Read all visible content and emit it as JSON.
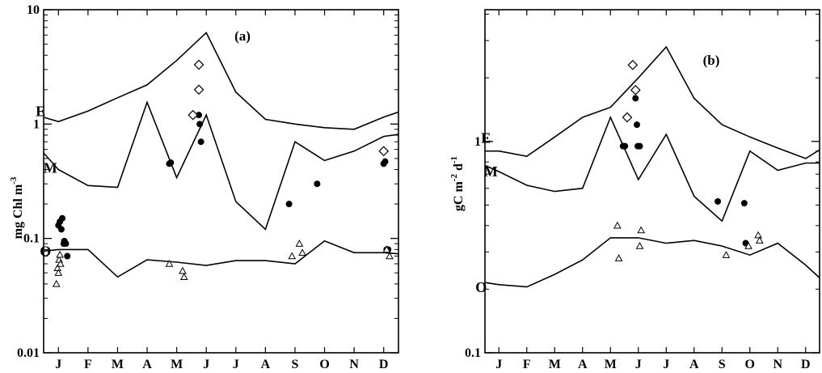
{
  "chart_data": [
    {
      "type": "line",
      "panel_label": "(a)",
      "ylabel_main": "mg Chl m",
      "ylabel_sup": "-3",
      "yscale": "log",
      "ylim": [
        0.01,
        10
      ],
      "yticks": [
        0.01,
        0.1,
        1,
        10
      ],
      "ytick_labels": [
        "0.01",
        "0.1",
        "1",
        "10"
      ],
      "months": [
        "J",
        "F",
        "M",
        "A",
        "M",
        "J",
        "J",
        "A",
        "S",
        "O",
        "N",
        "D"
      ],
      "xlim": [
        0.5,
        12.5
      ],
      "series": [
        {
          "name": "E",
          "x": [
            0,
            1,
            2,
            3,
            4,
            5,
            6,
            7,
            8,
            9,
            10,
            11,
            12,
            12.6
          ],
          "values": [
            1.25,
            1.05,
            1.3,
            1.7,
            2.2,
            3.6,
            6.3,
            1.9,
            1.1,
            1.0,
            0.93,
            0.9,
            1.15,
            1.3
          ]
        },
        {
          "name": "M",
          "x": [
            0,
            1,
            2,
            3,
            4,
            5,
            6,
            7,
            8,
            9,
            10,
            11,
            12,
            12.6
          ],
          "values": [
            0.78,
            0.4,
            0.29,
            0.28,
            1.55,
            0.34,
            1.2,
            0.21,
            0.12,
            0.7,
            0.48,
            0.58,
            0.78,
            0.82
          ]
        },
        {
          "name": "O",
          "x": [
            0,
            1,
            2,
            3,
            4,
            5,
            6,
            7,
            8,
            9,
            10,
            11,
            12,
            12.6
          ],
          "values": [
            0.075,
            0.08,
            0.08,
            0.046,
            0.065,
            0.062,
            0.058,
            0.064,
            0.064,
            0.06,
            0.095,
            0.075,
            0.075,
            0.073
          ]
        }
      ],
      "scatter": {
        "filled_circles": {
          "x": [
            1.0,
            1.05,
            1.1,
            1.13,
            1.18,
            1.2,
            1.25,
            1.3,
            4.75,
            4.8,
            5.75,
            5.78,
            5.82,
            8.8,
            9.75,
            12.0,
            12.05,
            12.1,
            12.15
          ],
          "values": [
            0.13,
            0.14,
            0.12,
            0.15,
            0.09,
            0.095,
            0.09,
            0.07,
            0.45,
            0.46,
            1.2,
            1.0,
            0.7,
            0.2,
            0.3,
            0.45,
            0.47,
            0.08,
            0.08
          ]
        },
        "open_diamonds": {
          "x": [
            5.55,
            5.75,
            5.75,
            12.0
          ],
          "values": [
            1.2,
            2.0,
            3.3,
            0.58
          ]
        },
        "open_triangles": {
          "x": [
            0.93,
            0.97,
            1.0,
            1.02,
            1.05,
            1.07,
            4.75,
            5.2,
            5.25,
            8.9,
            9.15,
            9.25,
            12.1,
            12.2
          ],
          "values": [
            0.04,
            0.055,
            0.05,
            0.065,
            0.072,
            0.06,
            0.06,
            0.052,
            0.046,
            0.07,
            0.09,
            0.075,
            0.08,
            0.07
          ]
        }
      }
    },
    {
      "type": "line",
      "panel_label": "(b)",
      "ylabel_main": "gC m",
      "ylabel_sup1": "-2",
      "ylabel_mid": " d",
      "ylabel_sup2": "-1",
      "yscale": "log",
      "ylim": [
        0.1,
        4.2
      ],
      "yticks": [
        0.1,
        1
      ],
      "ytick_labels": [
        "0.1",
        "1"
      ],
      "months": [
        "J",
        "F",
        "M",
        "A",
        "M",
        "J",
        "J",
        "A",
        "S",
        "O",
        "N",
        "D"
      ],
      "xlim": [
        0.5,
        12.5
      ],
      "series": [
        {
          "name": "E",
          "x": [
            0.5,
            1,
            2,
            3,
            4,
            5,
            6,
            7,
            8,
            9,
            10,
            11,
            12,
            12.6
          ],
          "values": [
            0.9,
            0.9,
            0.85,
            1.05,
            1.3,
            1.45,
            2.0,
            2.8,
            1.6,
            1.2,
            1.05,
            0.93,
            0.83,
            0.93
          ]
        },
        {
          "name": "M",
          "x": [
            0.5,
            1,
            2,
            3,
            4,
            5,
            6,
            7,
            8,
            9,
            10,
            11,
            12,
            12.6
          ],
          "values": [
            0.77,
            0.72,
            0.62,
            0.58,
            0.6,
            1.3,
            0.66,
            1.08,
            0.55,
            0.42,
            0.9,
            0.73,
            0.79,
            0.79
          ]
        },
        {
          "name": "O",
          "x": [
            0.5,
            1,
            2,
            3,
            4,
            5,
            6,
            7,
            8,
            9,
            10,
            11,
            12,
            12.6
          ],
          "values": [
            0.215,
            0.21,
            0.205,
            0.235,
            0.275,
            0.35,
            0.35,
            0.33,
            0.34,
            0.32,
            0.29,
            0.33,
            0.26,
            0.22
          ]
        }
      ],
      "scatter": {
        "filled_circles": {
          "x": [
            5.45,
            5.52,
            5.9,
            5.95,
            5.98,
            6.05,
            8.85,
            9.8,
            9.85
          ],
          "values": [
            0.95,
            0.95,
            1.6,
            1.2,
            0.95,
            0.95,
            0.52,
            0.51,
            0.33
          ]
        },
        "open_diamonds": {
          "x": [
            5.6,
            5.8,
            5.9
          ],
          "values": [
            1.3,
            2.3,
            1.75
          ]
        },
        "open_triangles": {
          "x": [
            5.25,
            5.3,
            6.05,
            6.1,
            9.15,
            9.95,
            10.3,
            10.35
          ],
          "values": [
            0.4,
            0.28,
            0.32,
            0.38,
            0.29,
            0.32,
            0.36,
            0.34
          ]
        }
      }
    }
  ]
}
